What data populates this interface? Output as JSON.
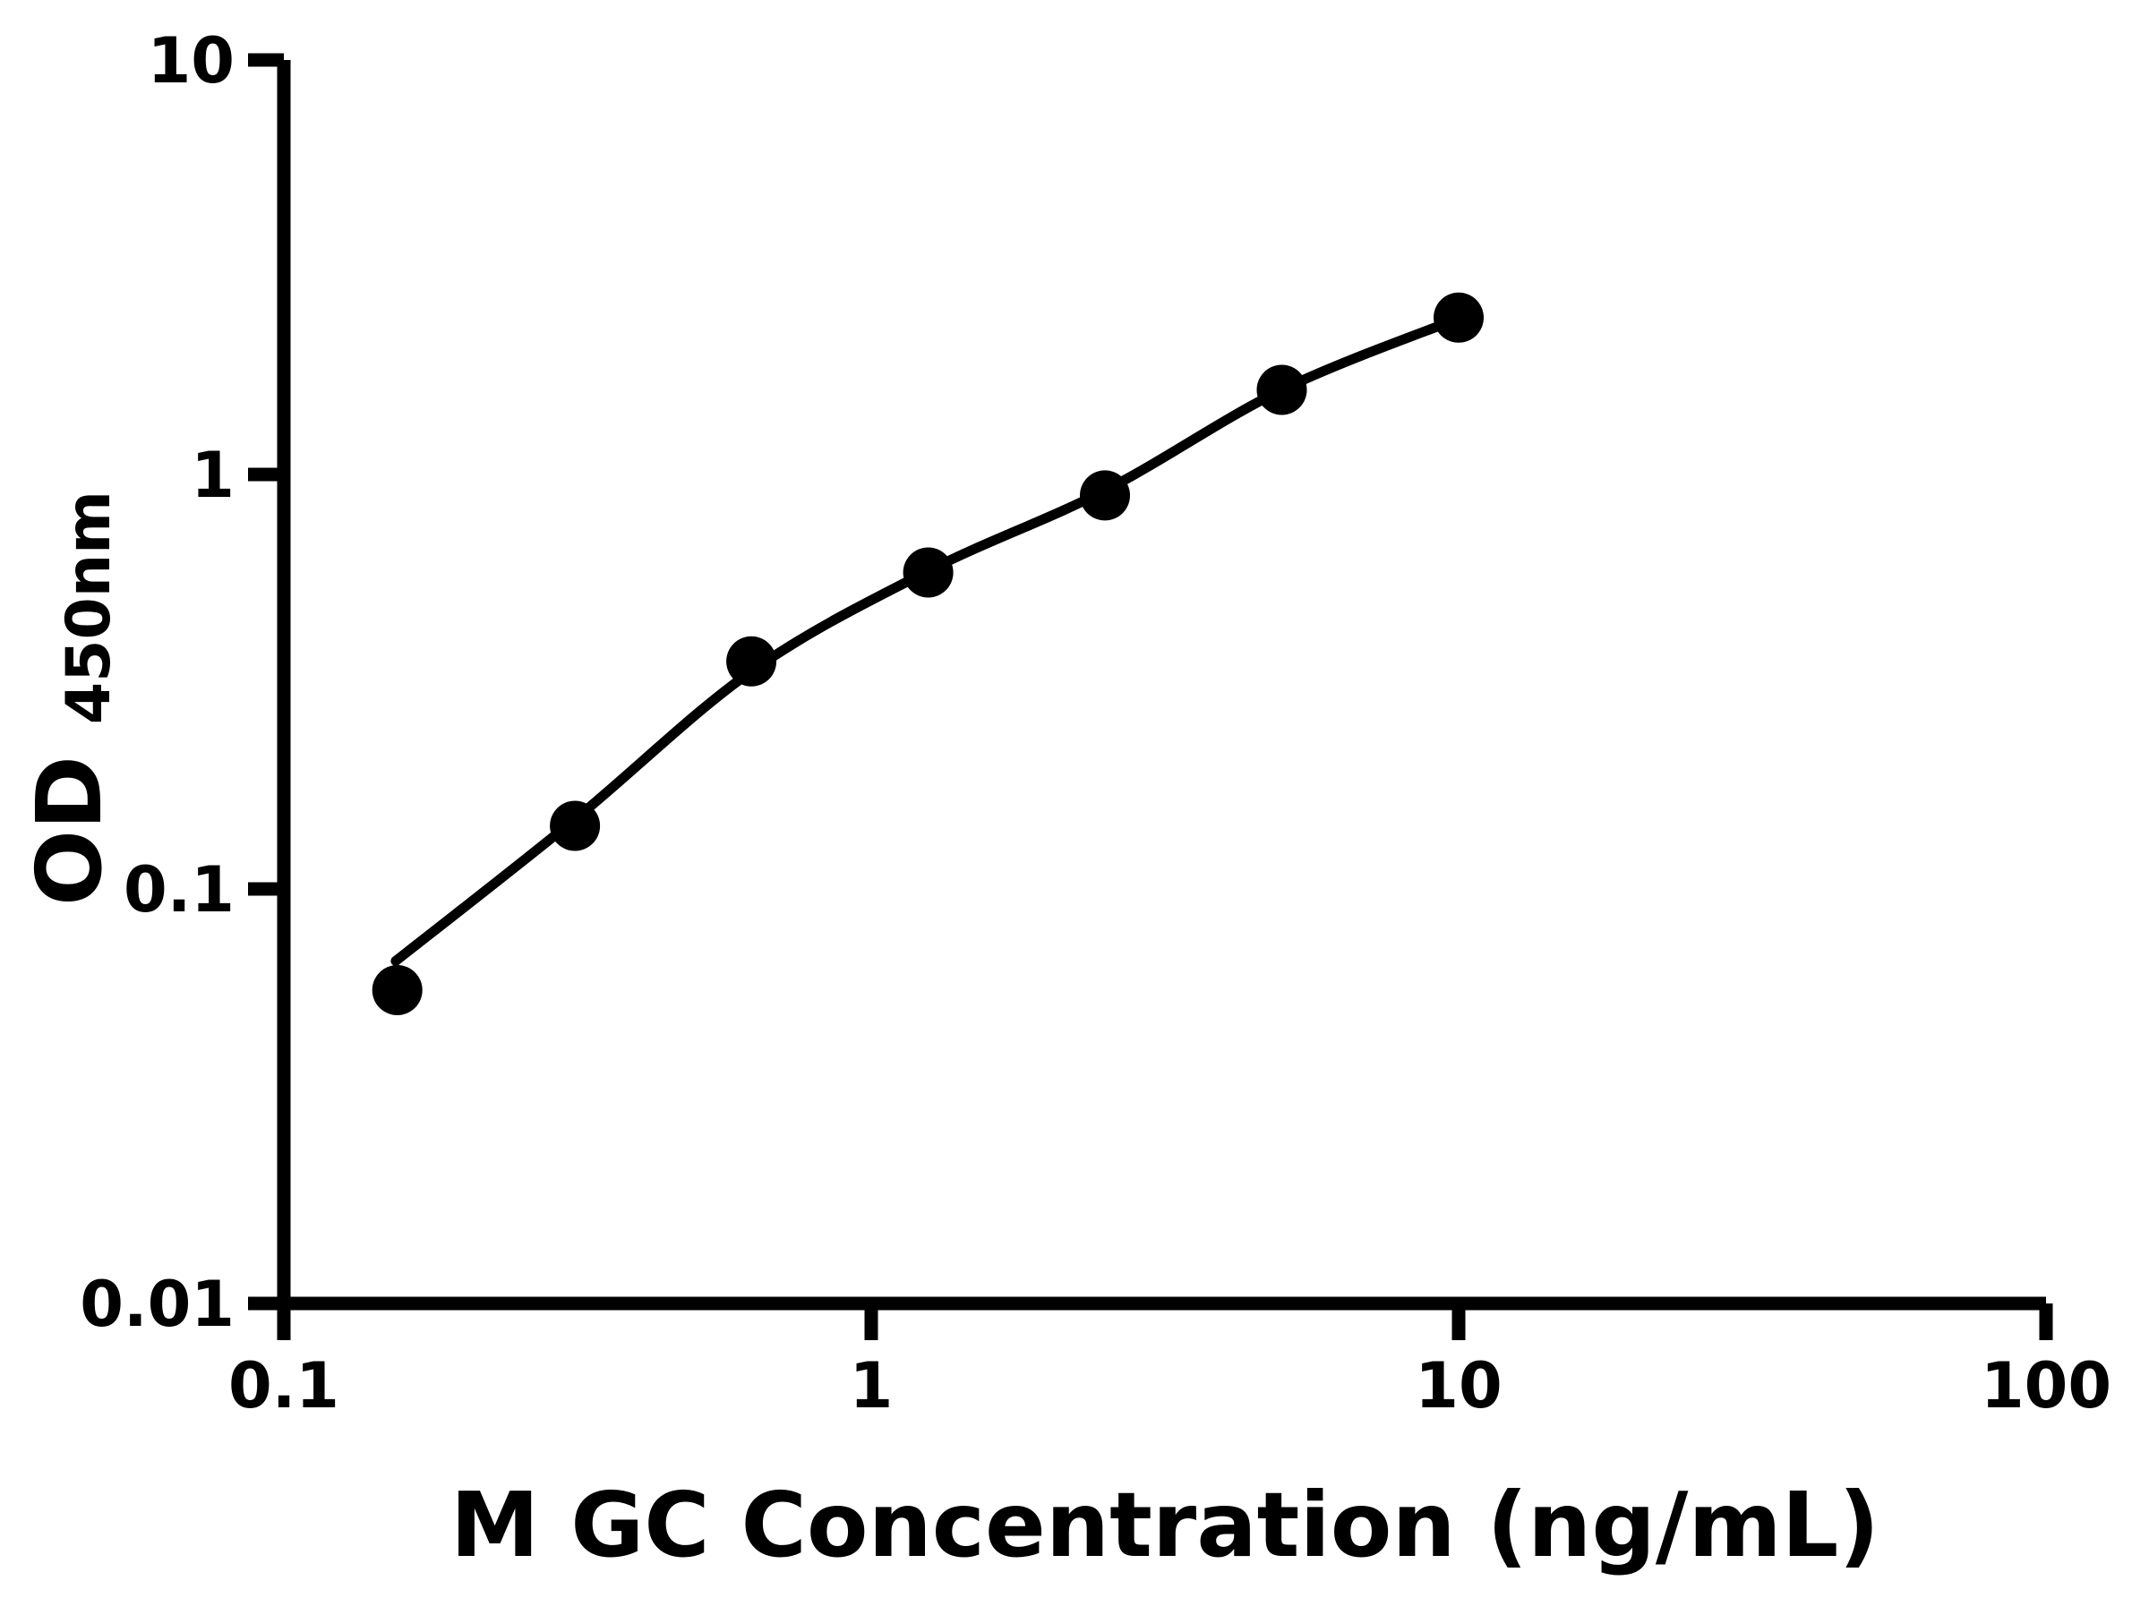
{
  "figure": {
    "background": "#ffffff",
    "ink_color": "#000000"
  },
  "chart_data": {
    "type": "scatter",
    "title": "",
    "xlabel": "M GC Concentration (ng/mL)",
    "ylabel": "OD",
    "ylabel_subscript": "450nm",
    "x_scale": "log",
    "y_scale": "log",
    "xlim": [
      0.1,
      100
    ],
    "ylim": [
      0.01,
      10
    ],
    "x_ticks": [
      0.1,
      1,
      10,
      100
    ],
    "x_tick_labels": [
      "0.1",
      "1",
      "10",
      "100"
    ],
    "y_ticks": [
      10,
      1,
      0.1,
      0.01
    ],
    "y_tick_labels": [
      "10",
      "1",
      "0.1",
      "0.01"
    ],
    "grid": false,
    "legend": null,
    "series": [
      {
        "name": "standard-points",
        "type": "scatter",
        "marker": "circle",
        "color": "#000000",
        "points": [
          [
            0.156,
            0.057
          ],
          [
            0.313,
            0.142
          ],
          [
            0.625,
            0.354
          ],
          [
            1.25,
            0.58
          ],
          [
            2.5,
            0.89
          ],
          [
            5,
            1.6
          ],
          [
            10,
            2.39
          ]
        ]
      },
      {
        "name": "fitted-curve",
        "type": "line",
        "color": "#000000",
        "points": [
          [
            0.155,
            0.067
          ],
          [
            0.3125,
            0.147
          ],
          [
            0.625,
            0.335
          ],
          [
            1.25,
            0.585
          ],
          [
            2.5,
            0.915
          ],
          [
            5,
            1.6
          ],
          [
            10,
            2.38
          ]
        ]
      }
    ]
  }
}
